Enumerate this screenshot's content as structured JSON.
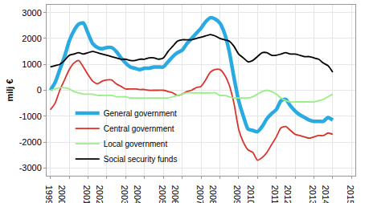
{
  "chart_data": {
    "type": "line",
    "y_label": "milj €",
    "x": [
      1999,
      1999.25,
      1999.5,
      1999.75,
      2000,
      2000.25,
      2000.5,
      2000.75,
      2001,
      2001.25,
      2001.5,
      2001.75,
      2002,
      2002.25,
      2002.5,
      2002.75,
      2003,
      2003.25,
      2003.5,
      2003.75,
      2004,
      2004.25,
      2004.5,
      2004.75,
      2005,
      2005.25,
      2005.5,
      2005.75,
      2006,
      2006.25,
      2006.5,
      2006.75,
      2007,
      2007.25,
      2007.5,
      2007.75,
      2008,
      2008.25,
      2008.5,
      2008.75,
      2009,
      2009.25,
      2009.5,
      2009.75,
      2010,
      2010.25,
      2010.5,
      2010.75,
      2011,
      2011.25,
      2011.5,
      2011.75,
      2012,
      2012.25,
      2012.5,
      2012.75,
      2013,
      2013.25,
      2013.5,
      2013.75,
      2014
    ],
    "series": [
      {
        "name": "General government",
        "color": "#29abe2",
        "values": [
          0,
          300,
          800,
          1300,
          1900,
          2300,
          2550,
          2600,
          2200,
          1800,
          1650,
          1600,
          1650,
          1650,
          1500,
          1250,
          1050,
          900,
          850,
          800,
          850,
          850,
          900,
          900,
          900,
          1100,
          1300,
          1450,
          1550,
          1800,
          2000,
          2200,
          2400,
          2650,
          2800,
          2750,
          2600,
          2200,
          1500,
          500,
          -400,
          -1000,
          -1500,
          -1550,
          -1600,
          -1400,
          -1100,
          -900,
          -750,
          -400,
          -350,
          -600,
          -800,
          -950,
          -1050,
          -1150,
          -1200,
          -1200,
          -1200,
          -1050,
          -1150
        ]
      },
      {
        "name": "Central government",
        "color": "#d9342b",
        "values": [
          -750,
          -500,
          0,
          400,
          800,
          1050,
          1150,
          900,
          600,
          350,
          250,
          350,
          400,
          400,
          250,
          150,
          50,
          50,
          50,
          30,
          30,
          0,
          0,
          0,
          0,
          -50,
          -100,
          -200,
          -150,
          -50,
          0,
          100,
          150,
          400,
          700,
          800,
          800,
          600,
          200,
          -500,
          -1500,
          -2000,
          -2300,
          -2400,
          -2700,
          -2600,
          -2400,
          -2100,
          -1800,
          -1450,
          -1400,
          -1550,
          -1700,
          -1750,
          -1800,
          -1850,
          -1800,
          -1750,
          -1750,
          -1650,
          -1700
        ]
      },
      {
        "name": "Local government",
        "color": "#99ee88",
        "values": [
          0,
          50,
          100,
          100,
          50,
          -50,
          -100,
          -150,
          -150,
          -150,
          -200,
          -200,
          -200,
          -200,
          -250,
          -250,
          -250,
          -300,
          -300,
          -300,
          -300,
          -300,
          -300,
          -300,
          -300,
          -300,
          -250,
          -200,
          -150,
          -100,
          -100,
          -100,
          -100,
          -100,
          -100,
          -100,
          -200,
          -200,
          -250,
          -300,
          -300,
          -300,
          -300,
          -250,
          -150,
          -50,
          0,
          -50,
          -150,
          -300,
          -400,
          -450,
          -450,
          -450,
          -450,
          -450,
          -450,
          -400,
          -350,
          -250,
          -150
        ]
      },
      {
        "name": "Social security funds",
        "color": "#000000",
        "values": [
          900,
          950,
          1000,
          1150,
          1350,
          1400,
          1450,
          1400,
          1450,
          1500,
          1450,
          1400,
          1350,
          1300,
          1250,
          1200,
          1200,
          1150,
          1150,
          1200,
          1200,
          1250,
          1250,
          1200,
          1250,
          1500,
          1700,
          1900,
          1950,
          1950,
          1950,
          2000,
          2050,
          2100,
          2150,
          2100,
          2000,
          1950,
          1900,
          1700,
          1400,
          1250,
          1100,
          1150,
          1300,
          1450,
          1450,
          1350,
          1350,
          1400,
          1450,
          1400,
          1400,
          1350,
          1300,
          1300,
          1250,
          1200,
          1050,
          950,
          700
        ]
      }
    ],
    "xlim": [
      1998.8,
      2015.2
    ],
    "xticks": [
      1999,
      2000,
      2001,
      2002,
      2003,
      2004,
      2005,
      2006,
      2007,
      2008,
      2009,
      2010,
      2011,
      2012,
      2013,
      2014,
      2015
    ],
    "ylim": [
      -3300,
      3300
    ],
    "yticks": [
      -3000,
      -2000,
      -1000,
      0,
      1000,
      2000,
      3000
    ],
    "grid": true,
    "legend": "bottom-left"
  }
}
